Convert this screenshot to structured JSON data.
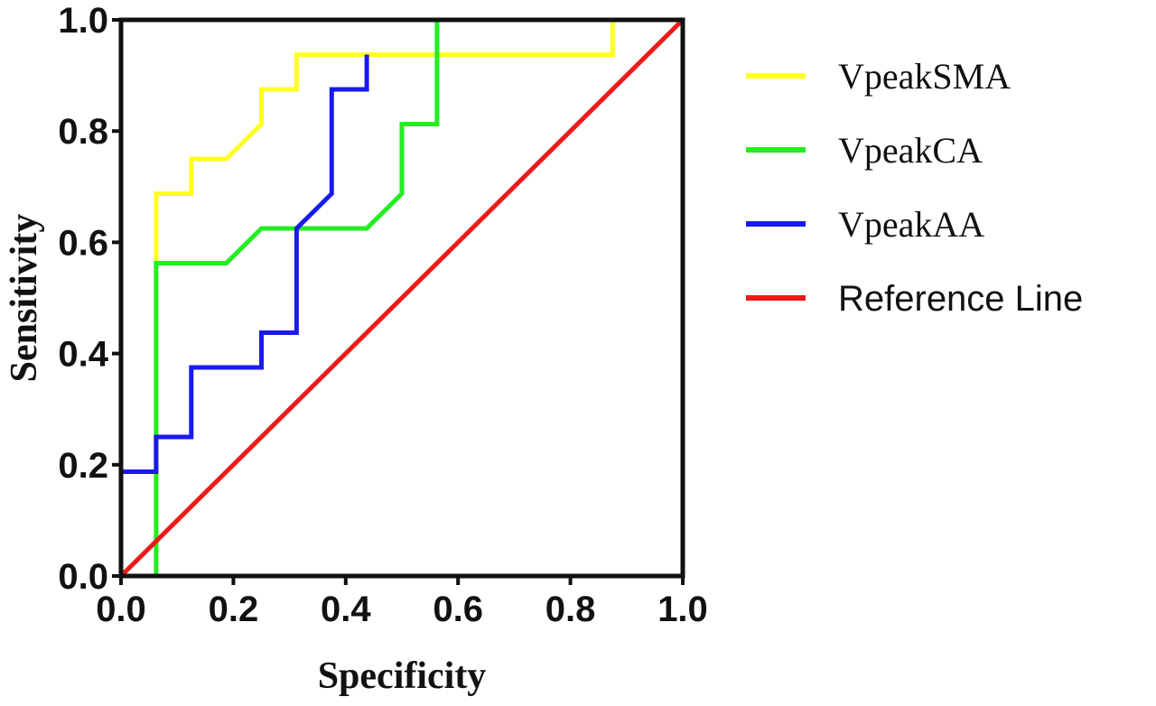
{
  "chart_data": {
    "type": "line",
    "xlabel": "Specificity",
    "ylabel": "Sensitivity",
    "xlim": [
      0,
      1
    ],
    "ylim": [
      0,
      1
    ],
    "x_ticks": [
      "0.0",
      "0.2",
      "0.4",
      "0.6",
      "0.8",
      "1.0"
    ],
    "y_ticks": [
      "0.0",
      "0.2",
      "0.4",
      "0.6",
      "0.8",
      "1.0"
    ],
    "grid": false,
    "legend_position": "right",
    "series": [
      {
        "name": "VpeakSMA",
        "color": "#ffff22",
        "x": [
          0.0,
          0.0625,
          0.0625,
          0.125,
          0.125,
          0.1875,
          0.25,
          0.25,
          0.3125,
          0.3125,
          0.875,
          0.875,
          1.0
        ],
        "y": [
          0.0,
          0.0,
          0.6875,
          0.6875,
          0.75,
          0.75,
          0.8125,
          0.875,
          0.875,
          0.9375,
          0.9375,
          1.0,
          1.0
        ]
      },
      {
        "name": "VpeakCA",
        "color": "#22ee22",
        "x": [
          0.0625,
          0.0625,
          0.1875,
          0.25,
          0.4375,
          0.5,
          0.5,
          0.5625,
          0.5625,
          1.0
        ],
        "y": [
          0.0,
          0.5625,
          0.5625,
          0.625,
          0.625,
          0.6875,
          0.8125,
          0.8125,
          1.0,
          1.0
        ]
      },
      {
        "name": "VpeakAA",
        "color": "#1a1aee",
        "x": [
          0.0,
          0.0,
          0.0625,
          0.0625,
          0.125,
          0.125,
          0.25,
          0.25,
          0.3125,
          0.3125,
          0.375,
          0.375,
          0.4375,
          0.4375
        ],
        "y": [
          0.0,
          0.1875,
          0.1875,
          0.25,
          0.25,
          0.375,
          0.375,
          0.4375,
          0.4375,
          0.625,
          0.6875,
          0.875,
          0.875,
          0.9375
        ]
      },
      {
        "name": "Reference Line",
        "color": "#ee1a1a",
        "x": [
          0.0,
          1.0
        ],
        "y": [
          0.0,
          1.0
        ]
      }
    ]
  }
}
